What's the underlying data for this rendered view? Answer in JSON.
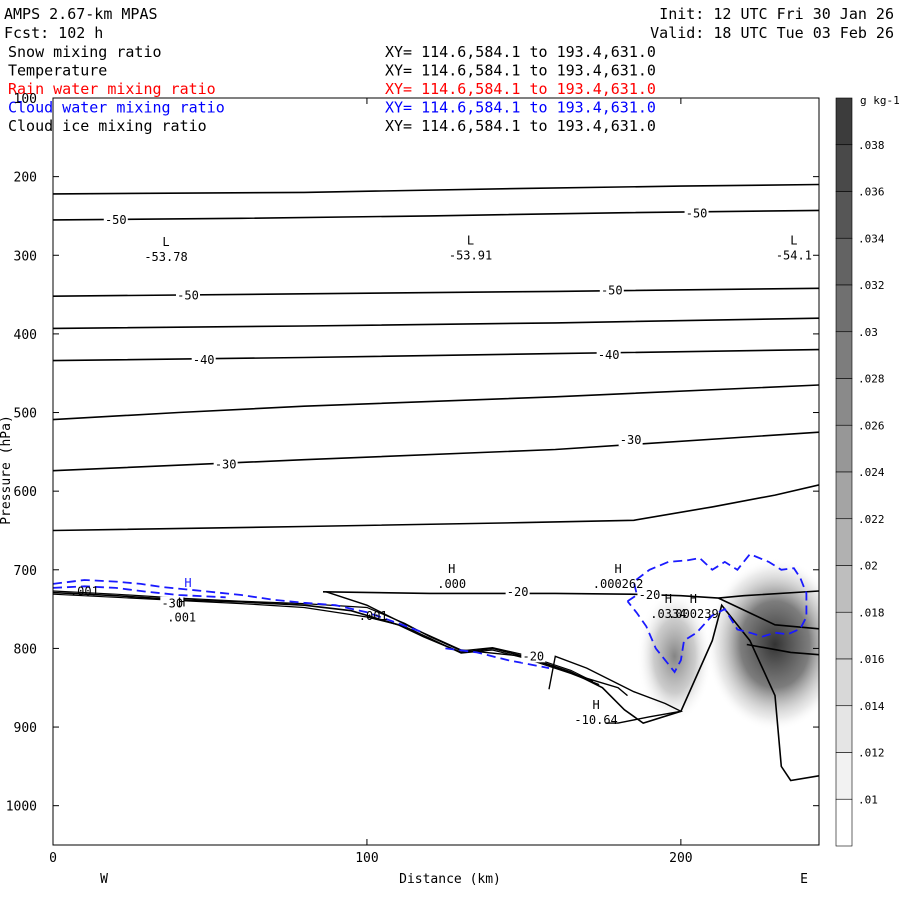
{
  "header": {
    "model": "AMPS 2.67-km MPAS",
    "forecast": "Fcst:  102 h",
    "init": "Init: 12 UTC Fri 30 Jan 26",
    "valid": "Valid: 18 UTC Tue 03 Feb 26"
  },
  "legend": [
    {
      "name": "Snow mixing ratio",
      "xy": "XY= 114.6,584.1 to 193.4,631.0",
      "color": "#000000"
    },
    {
      "name": "Temperature",
      "xy": "XY= 114.6,584.1 to 193.4,631.0",
      "color": "#000000"
    },
    {
      "name": "Rain water mixing ratio",
      "xy": "XY= 114.6,584.1 to 193.4,631.0",
      "color": "#ff0000"
    },
    {
      "name": "Cloud water mixing ratio",
      "xy": "XY= 114.6,584.1 to 193.4,631.0",
      "color": "#0000ff"
    },
    {
      "name": "Cloud ice mixing ratio",
      "xy": "XY= 114.6,584.1 to 193.4,631.0",
      "color": "#000000"
    }
  ],
  "chart_data": {
    "type": "cross-section",
    "xlabel": "Distance (km)",
    "ylabel": "Pressure (hPa)",
    "xlim": [
      0,
      244
    ],
    "ylim": [
      100,
      1050
    ],
    "xticks": [
      0,
      100,
      200
    ],
    "yticks": [
      200,
      300,
      400,
      500,
      600,
      700,
      800,
      900,
      1000
    ],
    "ytick_labels": [
      "200",
      "300",
      "400",
      "500",
      "600",
      "700",
      "800",
      "900",
      "1000"
    ],
    "ytop_label": "100",
    "x_end_labels": {
      "left": "W",
      "right": "E"
    },
    "colorbar": {
      "units": "g kg-1",
      "levels": [
        0.01,
        0.012,
        0.014,
        0.016,
        0.018,
        0.02,
        0.022,
        0.024,
        0.026,
        0.028,
        0.03,
        0.032,
        0.034,
        0.036,
        0.038
      ],
      "labels": [
        ".01",
        ".012",
        ".014",
        ".016",
        ".018",
        ".02",
        ".022",
        ".024",
        ".026",
        ".028",
        ".03",
        ".032",
        ".034",
        ".036",
        ".038"
      ]
    },
    "isotherms": [
      {
        "points": [
          [
            0,
            222
          ],
          [
            80,
            220
          ],
          [
            150,
            215
          ],
          [
            200,
            212
          ],
          [
            244,
            210
          ]
        ]
      },
      {
        "points": [
          [
            0,
            255
          ],
          [
            60,
            253
          ],
          [
            120,
            250
          ],
          [
            180,
            246
          ],
          [
            244,
            243
          ]
        ]
      },
      {
        "points": [
          [
            0,
            352
          ],
          [
            80,
            349
          ],
          [
            160,
            346
          ],
          [
            244,
            342
          ]
        ]
      },
      {
        "points": [
          [
            0,
            393
          ],
          [
            80,
            390
          ],
          [
            160,
            386
          ],
          [
            244,
            380
          ]
        ]
      },
      {
        "points": [
          [
            0,
            434
          ],
          [
            80,
            430
          ],
          [
            160,
            425
          ],
          [
            244,
            420
          ]
        ]
      },
      {
        "points": [
          [
            0,
            509
          ],
          [
            40,
            500
          ],
          [
            80,
            492
          ],
          [
            160,
            480
          ],
          [
            244,
            465
          ]
        ]
      },
      {
        "points": [
          [
            0,
            574
          ],
          [
            80,
            560
          ],
          [
            160,
            547
          ],
          [
            244,
            525
          ]
        ]
      },
      {
        "points": [
          [
            0,
            650
          ],
          [
            80,
            645
          ],
          [
            150,
            640
          ],
          [
            185,
            637
          ],
          [
            210,
            620
          ],
          [
            230,
            605
          ],
          [
            244,
            592
          ]
        ]
      },
      {
        "points": [
          [
            86,
            728
          ],
          [
            120,
            730
          ],
          [
            160,
            730
          ],
          [
            184,
            731
          ],
          [
            200,
            733
          ],
          [
            212,
            736
          ],
          [
            220,
            733
          ],
          [
            244,
            727
          ]
        ]
      },
      {
        "points": [
          [
            212,
            736
          ],
          [
            230,
            770
          ],
          [
            244,
            775
          ]
        ]
      },
      {
        "points": [
          [
            221,
            795
          ],
          [
            235,
            805
          ],
          [
            244,
            808
          ]
        ]
      }
    ],
    "isotherm_labels": [
      {
        "text": "-50",
        "x": 20,
        "p": 255
      },
      {
        "text": "-50",
        "x": 205,
        "p": 247
      },
      {
        "text": "-50",
        "x": 43,
        "p": 351
      },
      {
        "text": "-50",
        "x": 178,
        "p": 345
      },
      {
        "text": "-40",
        "x": 48,
        "p": 433
      },
      {
        "text": "-40",
        "x": 177,
        "p": 427
      },
      {
        "text": "-30",
        "x": 55,
        "p": 566
      },
      {
        "text": "-30",
        "x": 184,
        "p": 535
      },
      {
        "text": "-20",
        "x": 148,
        "p": 728
      },
      {
        "text": "-20",
        "x": 190,
        "p": 732
      },
      {
        "text": "-30",
        "x": 38,
        "p": 743
      },
      {
        "text": "-20",
        "x": 153,
        "p": 810
      }
    ],
    "extrema": [
      {
        "kind": "L",
        "value": "-53.78",
        "x": 36,
        "p": 288
      },
      {
        "kind": "L",
        "value": "-53.91",
        "x": 133,
        "p": 286
      },
      {
        "kind": "L",
        "value": "-54.1",
        "x": 236,
        "p": 286
      },
      {
        "kind": "H",
        "value": ".000",
        "x": 127,
        "p": 704
      },
      {
        "kind": "H",
        "value": ".000262",
        "x": 180,
        "p": 704
      },
      {
        "kind": "H",
        "value": ".0334",
        "x": 196,
        "p": 742
      },
      {
        "kind": "H",
        "value": ".000239",
        "x": 204,
        "p": 742
      },
      {
        "kind": "H",
        "value": "-10.64",
        "x": 173,
        "p": 877
      },
      {
        "kind": "H",
        "value": ".001",
        "x": 41,
        "p": 747
      }
    ],
    "small_labels": [
      {
        "text": ".001",
        "x": 10,
        "p": 733
      },
      {
        "text": ".001",
        "x": 102,
        "p": 764
      }
    ],
    "terrain": [
      [
        0,
        729
      ],
      [
        20,
        733
      ],
      [
        40,
        738
      ],
      [
        60,
        741
      ],
      [
        80,
        745
      ],
      [
        95,
        752
      ],
      [
        110,
        770
      ],
      [
        118,
        785
      ],
      [
        130,
        805
      ],
      [
        140,
        800
      ],
      [
        150,
        810
      ],
      [
        165,
        830
      ],
      [
        175,
        850
      ],
      [
        182,
        878
      ],
      [
        188,
        895
      ],
      [
        200,
        880
      ],
      [
        210,
        790
      ],
      [
        213,
        745
      ],
      [
        222,
        790
      ],
      [
        230,
        860
      ],
      [
        232,
        950
      ],
      [
        235,
        968
      ],
      [
        244,
        962
      ]
    ],
    "terrain2": [
      [
        0,
        727
      ],
      [
        20,
        731
      ],
      [
        40,
        736
      ],
      [
        60,
        740
      ],
      [
        80,
        743
      ],
      [
        100,
        748
      ],
      [
        112,
        768
      ],
      [
        120,
        785
      ],
      [
        130,
        803
      ],
      [
        140,
        799
      ],
      [
        150,
        808
      ],
      [
        165,
        828
      ],
      [
        172,
        842
      ]
    ],
    "terrain3": [
      [
        0,
        731
      ],
      [
        20,
        735
      ],
      [
        40,
        739
      ],
      [
        60,
        743
      ],
      [
        80,
        748
      ],
      [
        100,
        760
      ],
      [
        112,
        772
      ],
      [
        120,
        787
      ],
      [
        130,
        806
      ],
      [
        140,
        802
      ],
      [
        150,
        812
      ],
      [
        165,
        832
      ],
      [
        174,
        846
      ]
    ],
    "mountain_loop": [
      [
        87,
        728
      ],
      [
        100,
        745
      ],
      [
        115,
        775
      ],
      [
        130,
        802
      ],
      [
        150,
        810
      ],
      [
        170,
        838
      ],
      [
        180,
        850
      ],
      [
        183,
        860
      ]
    ],
    "cold_loop": [
      [
        158,
        852
      ],
      [
        160,
        810
      ],
      [
        170,
        825
      ],
      [
        185,
        855
      ],
      [
        195,
        870
      ],
      [
        200,
        880
      ],
      [
        190,
        887
      ],
      [
        180,
        895
      ],
      [
        176,
        895
      ]
    ],
    "cloud_water": [
      {
        "points": [
          [
            0,
            718
          ],
          [
            10,
            713
          ],
          [
            20,
            715
          ],
          [
            28,
            718
          ],
          [
            35,
            722
          ],
          [
            45,
            726
          ],
          [
            60,
            732
          ],
          [
            70,
            738
          ],
          [
            80,
            742
          ],
          [
            90,
            745
          ],
          [
            100,
            754
          ],
          [
            110,
            768
          ],
          [
            118,
            780
          ]
        ]
      },
      {
        "points": [
          [
            0,
            723
          ],
          [
            10,
            721
          ],
          [
            20,
            723
          ],
          [
            30,
            728
          ],
          [
            40,
            732
          ],
          [
            55,
            735
          ]
        ]
      },
      {
        "points": [
          [
            125,
            800
          ],
          [
            135,
            805
          ],
          [
            145,
            815
          ],
          [
            158,
            825
          ]
        ]
      },
      {
        "points": [
          [
            183,
            740
          ],
          [
            186,
            732
          ],
          [
            185,
            715
          ],
          [
            190,
            700
          ],
          [
            196,
            690
          ],
          [
            202,
            688
          ],
          [
            206,
            685
          ],
          [
            210,
            700
          ],
          [
            214,
            690
          ],
          [
            218,
            700
          ],
          [
            222,
            680
          ],
          [
            228,
            690
          ],
          [
            232,
            700
          ],
          [
            236,
            698
          ],
          [
            238,
            710
          ],
          [
            240,
            730
          ],
          [
            240,
            760
          ],
          [
            238,
            775
          ],
          [
            234,
            782
          ],
          [
            230,
            780
          ],
          [
            226,
            785
          ],
          [
            222,
            780
          ],
          [
            218,
            776
          ],
          [
            214,
            750
          ],
          [
            210,
            758
          ],
          [
            205,
            780
          ],
          [
            201,
            790
          ],
          [
            200,
            815
          ],
          [
            198,
            830
          ],
          [
            195,
            815
          ],
          [
            192,
            800
          ],
          [
            189,
            772
          ],
          [
            186,
            755
          ],
          [
            183,
            740
          ]
        ]
      }
    ],
    "snow_blobs": [
      {
        "x": 198,
        "p": 810,
        "rx": 12,
        "rp": 85,
        "max": 0.018
      },
      {
        "x": 230,
        "p": 795,
        "rx": 22,
        "rp": 110,
        "max": 0.03
      }
    ],
    "rain_marker": {
      "text": "H",
      "x": 43,
      "p": 722
    }
  }
}
